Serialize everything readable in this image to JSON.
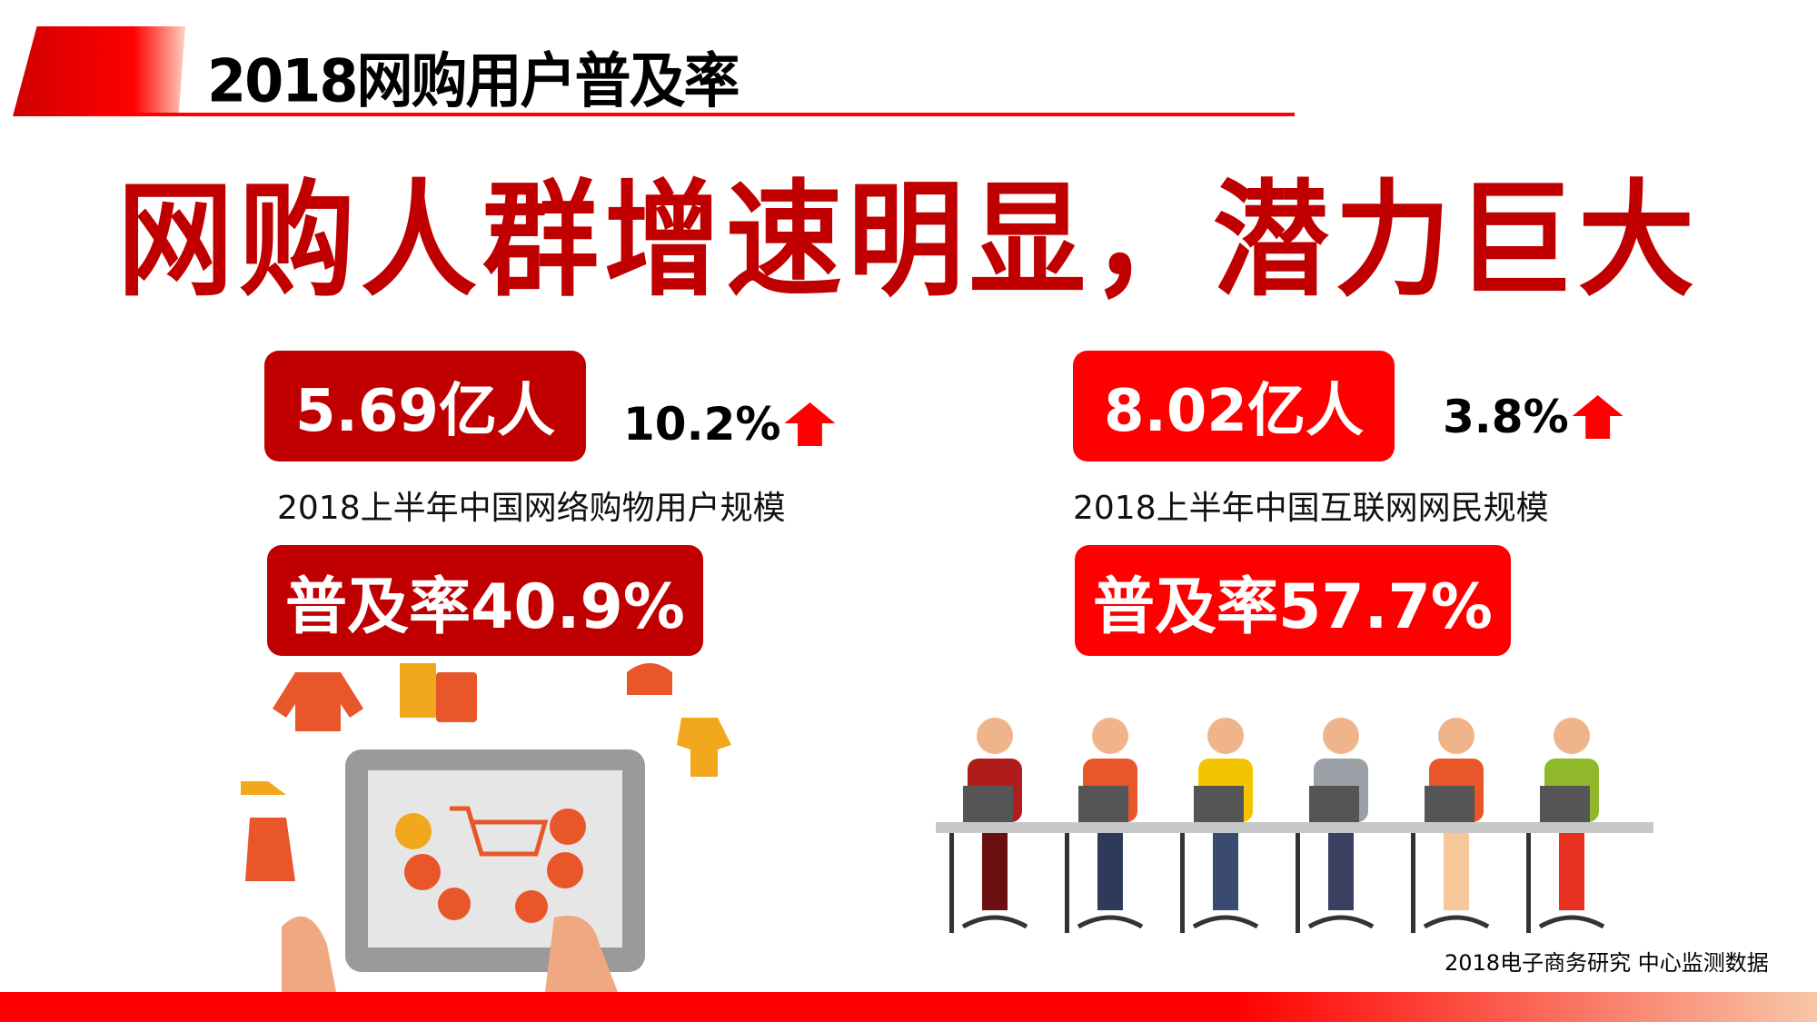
{
  "header": {
    "title": "2018网购用户普及率"
  },
  "main_title": "网购人群增速明显，潜力巨大",
  "left": {
    "value": "5.69亿人",
    "growth": "10.2%",
    "caption": "2018上半年中国网络购物用户规模",
    "rate": "普及率40.9%",
    "color": "#c00000"
  },
  "right": {
    "value": "8.02亿人",
    "growth": "3.8%",
    "caption": "2018上半年中国互联网网民规模",
    "rate": "普及率57.7%",
    "color": "#ff0000"
  },
  "source": "2018电子商务研究 中心监测数据",
  "icons": {
    "growth": "arrow-up-icon"
  }
}
